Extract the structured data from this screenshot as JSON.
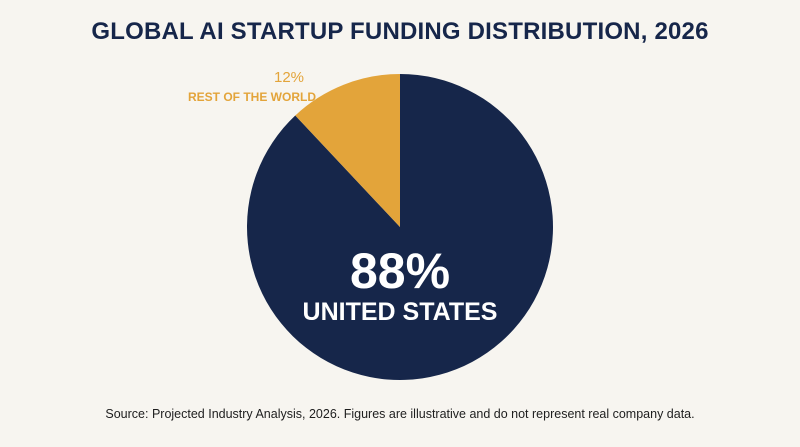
{
  "chart_data": {
    "type": "pie",
    "title": "GLOBAL AI STARTUP FUNDING DISTRIBUTION, 2026",
    "slices": [
      {
        "label": "UNITED STATES",
        "value": 88,
        "value_label": "88%",
        "color": "#16264a"
      },
      {
        "label": "REST OF THE WORLD",
        "value": 12,
        "value_label": "12%",
        "color": "#e3a43a"
      }
    ],
    "source": "Source: Projected Industry Analysis, 2026. Figures are illustrative and do not represent real company data."
  }
}
